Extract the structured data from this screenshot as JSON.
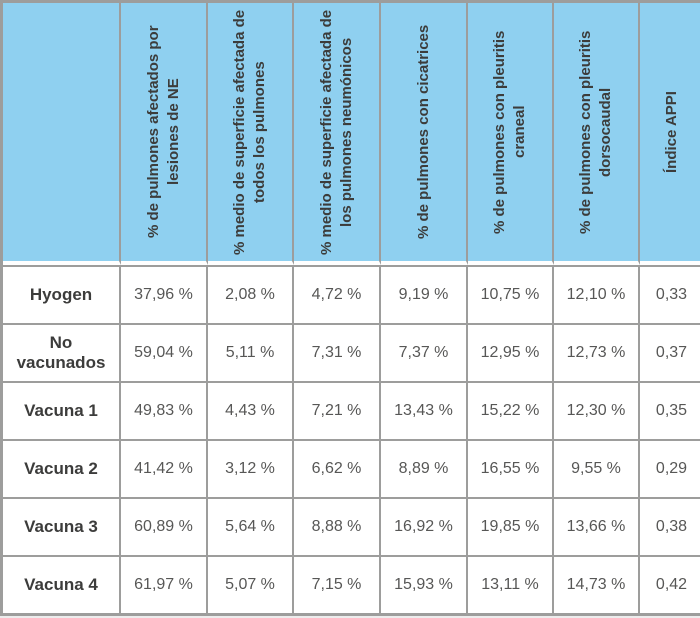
{
  "colors": {
    "header_bg": "#8FD0F0",
    "grid": "#9D9D9C",
    "header_text": "#3C3C3B",
    "label_text": "#3C3C3B",
    "value_text": "#575756",
    "cell_bg": "#FFFFFF",
    "page_bg": "#EDEDED"
  },
  "chart_data": {
    "type": "table",
    "corner_label": "",
    "columns": [
      "% de pulmones afectados por lesiones de NE",
      "% medio de superficie afectada de todos los pulmones",
      "% medio de superficie afectada de los pulmones neumónicos",
      "% de pulmones con cicatrices",
      "% de pulmones con pleuritis craneal",
      "% de pulmones con pleuritis dorsocaudal",
      "Índice APPI"
    ],
    "rows": [
      {
        "label": "Hyogen",
        "values": [
          "37,96 %",
          "2,08 %",
          "4,72 %",
          "9,19 %",
          "10,75 %",
          "12,10 %",
          "0,33"
        ]
      },
      {
        "label": "No vacunados",
        "values": [
          "59,04 %",
          "5,11 %",
          "7,31 %",
          "7,37 %",
          "12,95 %",
          "12,73 %",
          "0,37"
        ]
      },
      {
        "label": "Vacuna 1",
        "values": [
          "49,83 %",
          "4,43 %",
          "7,21 %",
          "13,43 %",
          "15,22 %",
          "12,30 %",
          "0,35"
        ]
      },
      {
        "label": "Vacuna 2",
        "values": [
          "41,42 %",
          "3,12 %",
          "6,62 %",
          "8,89 %",
          "16,55 %",
          "9,55 %",
          "0,29"
        ]
      },
      {
        "label": "Vacuna 3",
        "values": [
          "60,89 %",
          "5,64 %",
          "8,88 %",
          "16,92 %",
          "19,85 %",
          "13,66 %",
          "0,38"
        ]
      },
      {
        "label": "Vacuna 4",
        "values": [
          "61,97 %",
          "5,07 %",
          "7,15 %",
          "15,93 %",
          "13,11 %",
          "14,73 %",
          "0,42"
        ]
      }
    ]
  }
}
